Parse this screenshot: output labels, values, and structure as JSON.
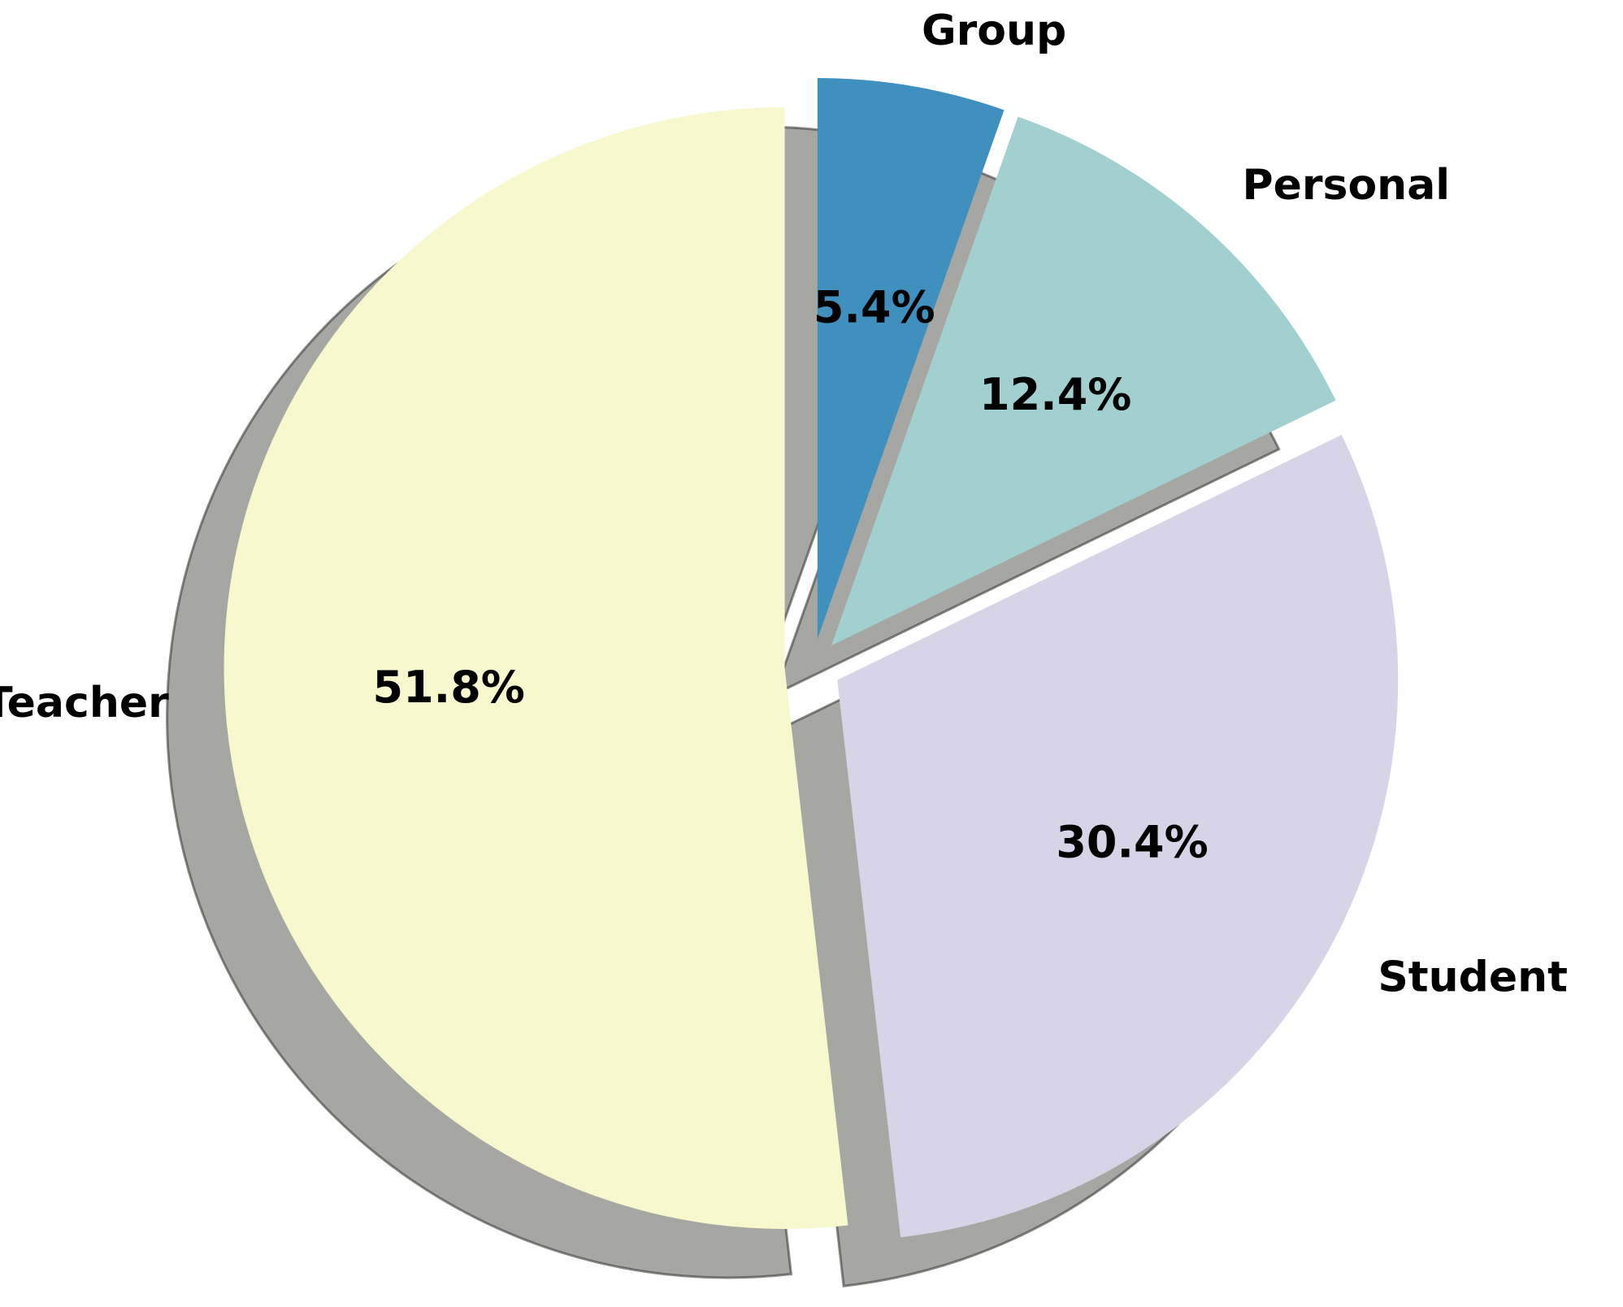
{
  "chart_data": {
    "type": "pie",
    "title": "",
    "slices": [
      {
        "label": "Group",
        "value": 5.4,
        "pct_label": "5.4%",
        "color": "#3f8fbf",
        "exploded": true
      },
      {
        "label": "Personal",
        "value": 12.4,
        "pct_label": "12.4%",
        "color": "#a2d0d1",
        "exploded": true
      },
      {
        "label": "Student",
        "value": 30.4,
        "pct_label": "30.4%",
        "color": "#d8d4e8",
        "exploded": true
      },
      {
        "label": "Teacher",
        "value": 51.8,
        "pct_label": "51.8%",
        "color": "#f8f8cf",
        "exploded": true
      }
    ],
    "start_angle": "90°, counter-clockwise from Teacher",
    "shadow": true,
    "legend": "none"
  }
}
